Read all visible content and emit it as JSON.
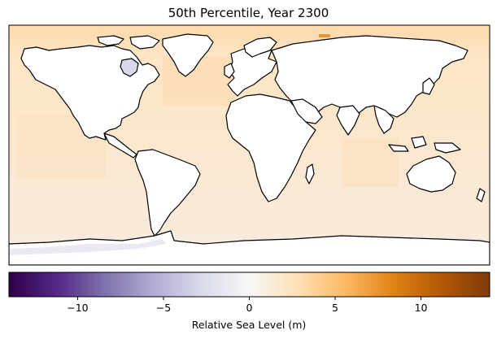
{
  "title": "50th Percentile, Year 2300",
  "colorbar": {
    "label": "Relative Sea Level (m)",
    "range": [
      -14,
      14
    ],
    "ticks": [
      {
        "value": -10,
        "label": "−10"
      },
      {
        "value": -5,
        "label": "−5"
      },
      {
        "value": 0,
        "label": "0"
      },
      {
        "value": 5,
        "label": "5"
      },
      {
        "value": 10,
        "label": "10"
      }
    ],
    "colormap": "PuOr",
    "stops": [
      "#2d004b",
      "#542788",
      "#8073ac",
      "#b2abd2",
      "#d8daeb",
      "#f7f7f7",
      "#fee0b6",
      "#fdb863",
      "#e08214",
      "#b35806",
      "#7f3b08"
    ]
  },
  "map": {
    "projection": "PlateCarree",
    "ocean_color": "#fbe7cc",
    "land_color": "#ffffff",
    "coastline_color": "#000000"
  }
}
